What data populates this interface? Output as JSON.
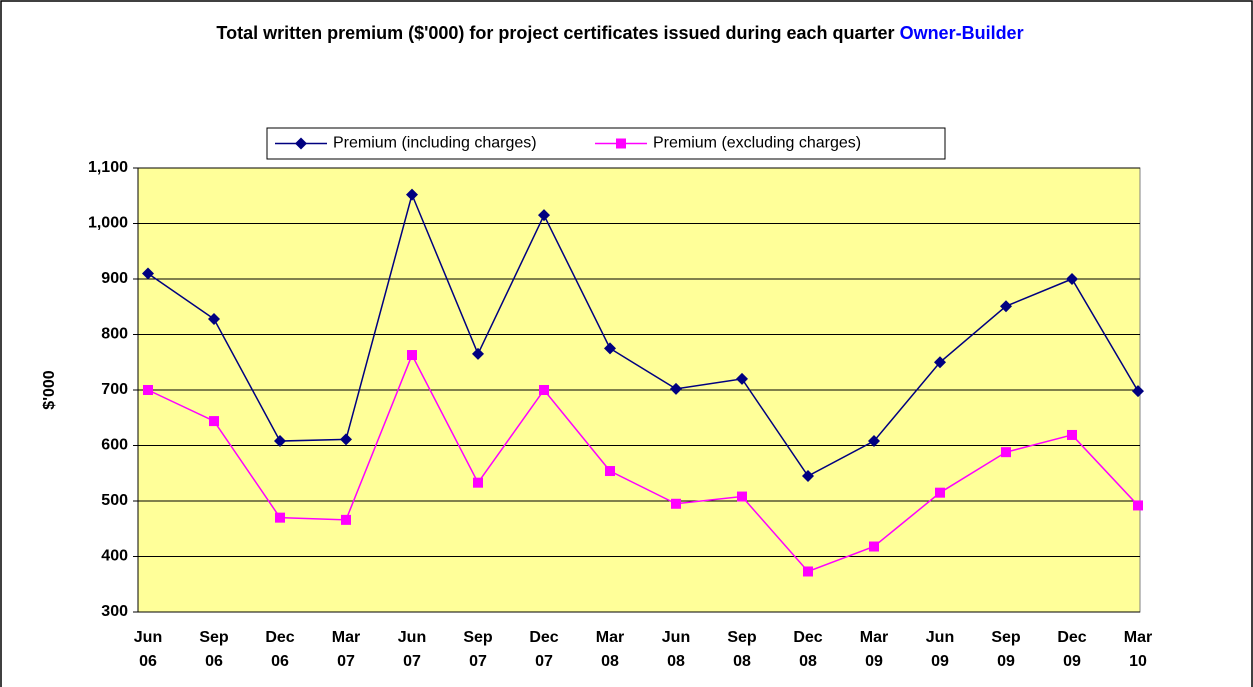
{
  "chart_data": {
    "type": "line",
    "title": "Total written premium ($'000) for project certificates issued during each quarter",
    "subtitle": "Owner-Builder",
    "y_label": "$'000",
    "categories": [
      "Jun 06",
      "Sep 06",
      "Dec 06",
      "Mar 07",
      "Jun 07",
      "Sep 07",
      "Dec 07",
      "Mar 08",
      "Jun 08",
      "Sep 08",
      "Dec 08",
      "Mar 09",
      "Jun 09",
      "Sep 09",
      "Dec 09",
      "Mar 10"
    ],
    "series": [
      {
        "name": "Premium (including charges)",
        "color": "#000080",
        "marker": "diamond",
        "values": [
          910,
          828,
          608,
          611,
          1052,
          765,
          1015,
          775,
          702,
          720,
          545,
          608,
          750,
          851,
          900,
          698
        ]
      },
      {
        "name": "Premium (excluding charges)",
        "color": "#FF00FF",
        "marker": "square",
        "values": [
          700,
          644,
          470,
          466,
          763,
          533,
          700,
          554,
          495,
          508,
          373,
          418,
          515,
          588,
          619,
          492
        ]
      }
    ],
    "ylim": [
      300,
      1100
    ],
    "yticks": [
      300,
      400,
      500,
      600,
      700,
      800,
      900,
      {
        "value": 1000,
        "label": "1,000"
      },
      {
        "value": 1100,
        "label": "1,100"
      }
    ],
    "grid": true,
    "legend": "top",
    "plot_background": "#FFFF99"
  }
}
